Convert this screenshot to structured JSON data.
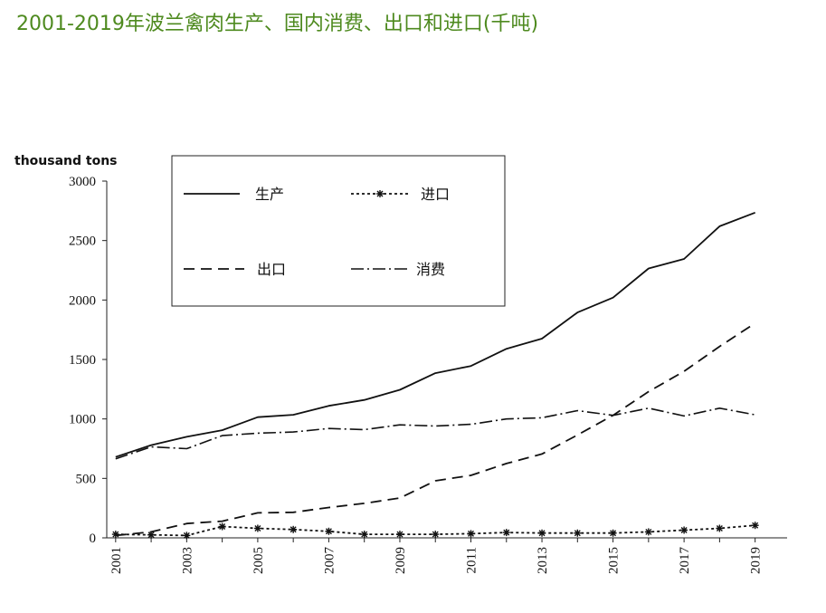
{
  "slide": {
    "title": "2001-2019年波兰禽肉生产、国内消费、出口和进口(千吨)",
    "title_color": "#4e8a1f"
  },
  "chart_data": {
    "type": "line",
    "unit_label": "thousand tons",
    "x": [
      2001,
      2002,
      2003,
      2004,
      2005,
      2006,
      2007,
      2008,
      2009,
      2010,
      2011,
      2012,
      2013,
      2014,
      2015,
      2016,
      2017,
      2018,
      2019
    ],
    "x_tick_labels": [
      "2001",
      "2003",
      "2005",
      "2007",
      "2009",
      "2011",
      "2013",
      "2015",
      "2017",
      "2019"
    ],
    "y_ticks": [
      "0",
      "500",
      "1000",
      "1500",
      "2000",
      "2500",
      "3000"
    ],
    "ylim": [
      0,
      3000
    ],
    "legend_placement": "top-left",
    "series": [
      {
        "name": "生产",
        "style": "solid",
        "values": [
          680,
          780,
          850,
          905,
          1015,
          1035,
          1110,
          1160,
          1245,
          1385,
          1445,
          1590,
          1675,
          1895,
          2020,
          2265,
          2345,
          2620,
          2735
        ]
      },
      {
        "name": "进口",
        "style": "dotted-star",
        "values": [
          30,
          25,
          20,
          95,
          80,
          70,
          55,
          30,
          30,
          30,
          35,
          45,
          40,
          40,
          40,
          50,
          65,
          80,
          105
        ]
      },
      {
        "name": "出口",
        "style": "dashed",
        "values": [
          20,
          50,
          120,
          140,
          210,
          215,
          255,
          290,
          335,
          480,
          525,
          625,
          705,
          865,
          1030,
          1230,
          1400,
          1610,
          1805
        ]
      },
      {
        "name": "消费",
        "style": "dash-dot",
        "values": [
          665,
          765,
          750,
          860,
          880,
          890,
          920,
          910,
          950,
          940,
          955,
          1000,
          1010,
          1070,
          1030,
          1090,
          1025,
          1090,
          1035
        ]
      }
    ]
  }
}
